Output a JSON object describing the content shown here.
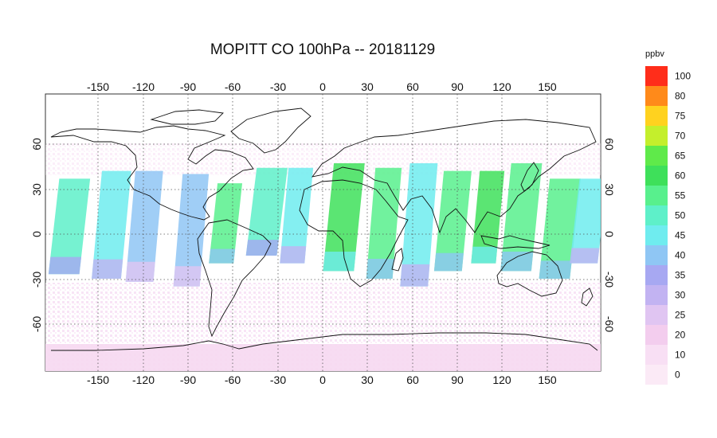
{
  "title": "MOPITT CO 100hPa -- 20181129",
  "colorbar": {
    "unit": "ppbv",
    "levels": [
      {
        "label": "100",
        "color": "#ff2d1a"
      },
      {
        "label": "80",
        "color": "#ff8a1a"
      },
      {
        "label": "75",
        "color": "#ffd21f"
      },
      {
        "label": "70",
        "color": "#c4ef2c"
      },
      {
        "label": "65",
        "color": "#5fea4a"
      },
      {
        "label": "60",
        "color": "#3ee05a"
      },
      {
        "label": "55",
        "color": "#58f08d"
      },
      {
        "label": "50",
        "color": "#5ef0c9"
      },
      {
        "label": "45",
        "color": "#6fecef"
      },
      {
        "label": "40",
        "color": "#8fc6f4"
      },
      {
        "label": "35",
        "color": "#a7a8f2"
      },
      {
        "label": "30",
        "color": "#c2b3f2"
      },
      {
        "label": "25",
        "color": "#e0c5f2"
      },
      {
        "label": "20",
        "color": "#f3cdee"
      },
      {
        "label": "10",
        "color": "#f8dff4"
      },
      {
        "label": "0",
        "color": "#fbeaf6"
      }
    ]
  },
  "axes": {
    "lon_ticks": [
      "-150",
      "-120",
      "-90",
      "-60",
      "-30",
      "0",
      "30",
      "60",
      "90",
      "120",
      "150"
    ],
    "lat_ticks": [
      "60",
      "30",
      "0",
      "-30",
      "-60"
    ]
  },
  "chart_data": {
    "type": "heatmap",
    "title": "MOPITT CO 100hPa -- 20181129",
    "xlim": [
      -180,
      180
    ],
    "ylim": [
      -90,
      90
    ],
    "x_ticks": [
      -150,
      -120,
      -90,
      -60,
      -30,
      0,
      30,
      60,
      90,
      120,
      150
    ],
    "y_ticks": [
      60,
      30,
      0,
      -30,
      -60
    ],
    "grid": true,
    "colorbar_unit": "ppbv",
    "colorbar_levels": [
      0,
      10,
      20,
      25,
      30,
      35,
      40,
      45,
      50,
      55,
      60,
      65,
      70,
      75,
      80,
      100
    ],
    "swaths": [
      {
        "lon_start": -178,
        "lon_end": -158,
        "lat_bottom": -27,
        "lat_top": 35,
        "value": 50
      },
      {
        "lon_start": -150,
        "lon_end": -131,
        "lat_bottom": -30,
        "lat_top": 40,
        "value": 45
      },
      {
        "lon_start": -128,
        "lon_end": -110,
        "lat_bottom": -32,
        "lat_top": 40,
        "value": 40
      },
      {
        "lon_start": -97,
        "lon_end": -80,
        "lat_bottom": -35,
        "lat_top": 38,
        "value": 40
      },
      {
        "lon_start": -74,
        "lon_end": -58,
        "lat_bottom": -20,
        "lat_top": 32,
        "value": 55
      },
      {
        "lon_start": -50,
        "lon_end": -30,
        "lat_bottom": -15,
        "lat_top": 42,
        "value": 50
      },
      {
        "lon_start": -28,
        "lon_end": -12,
        "lat_bottom": -20,
        "lat_top": 42,
        "value": 45
      },
      {
        "lon_start": 0,
        "lon_end": 20,
        "lat_bottom": -25,
        "lat_top": 45,
        "value": 60
      },
      {
        "lon_start": 28,
        "lon_end": 45,
        "lat_bottom": -30,
        "lat_top": 42,
        "value": 55
      },
      {
        "lon_start": 50,
        "lon_end": 68,
        "lat_bottom": -35,
        "lat_top": 45,
        "value": 45
      },
      {
        "lon_start": 72,
        "lon_end": 90,
        "lat_bottom": -25,
        "lat_top": 40,
        "value": 55
      },
      {
        "lon_start": 96,
        "lon_end": 112,
        "lat_bottom": -20,
        "lat_top": 40,
        "value": 60
      },
      {
        "lon_start": 115,
        "lon_end": 135,
        "lat_bottom": -25,
        "lat_top": 45,
        "value": 55
      },
      {
        "lon_start": 140,
        "lon_end": 160,
        "lat_bottom": -30,
        "lat_top": 35,
        "value": 55
      },
      {
        "lon_start": 160,
        "lon_end": 178,
        "lat_bottom": -20,
        "lat_top": 35,
        "value": 45
      }
    ]
  }
}
